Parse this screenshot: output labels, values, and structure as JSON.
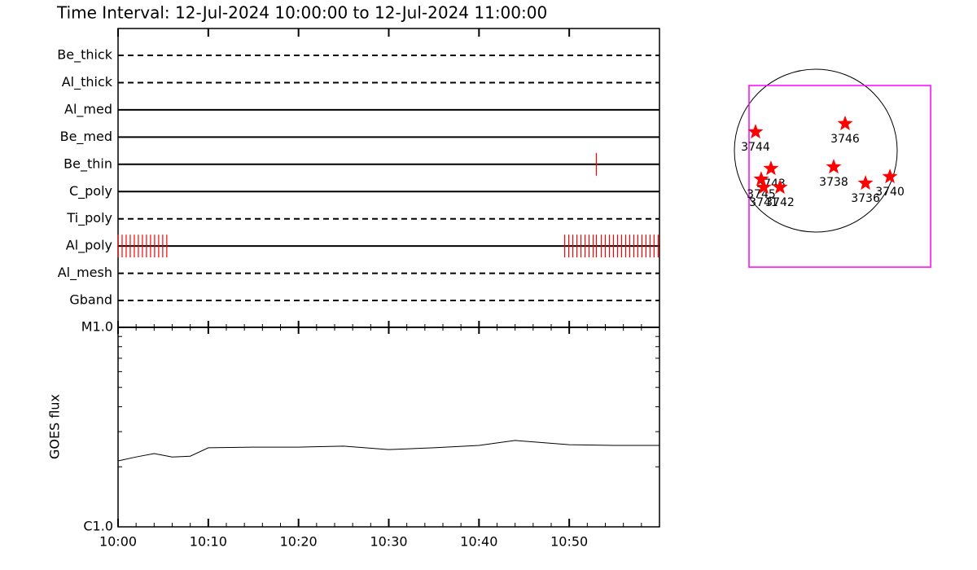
{
  "chart_data": [
    {
      "type": "timeline",
      "title": "Time Interval: 12-Jul-2024 10:00:00 to 12-Jul-2024 11:00:00",
      "categories": [
        "Be_thick",
        "Al_thick",
        "Al_med",
        "Be_med",
        "Be_thin",
        "C_poly",
        "Ti_poly",
        "Al_poly",
        "Al_mesh",
        "Gband"
      ],
      "line_styles": [
        "dashed",
        "dashed",
        "solid",
        "solid",
        "solid",
        "solid",
        "dashed",
        "solid",
        "dashed",
        "dashed"
      ],
      "color": "#ff0000",
      "xlim": [
        0,
        60
      ],
      "observations": [
        {
          "name": "Be_thin",
          "x": [
            53
          ]
        },
        {
          "name": "Al_poly",
          "x": [
            0,
            0.45,
            0.9,
            1.35,
            1.8,
            2.25,
            2.7,
            3.15,
            3.6,
            4.05,
            4.5,
            4.95,
            5.4,
            49.5,
            49.95,
            50.4,
            50.85,
            51.3,
            51.75,
            52.2,
            52.65,
            53,
            53.55,
            54,
            54.45,
            54.9,
            55.35,
            55.8,
            56.25,
            56.7,
            57.15,
            57.6,
            58.05,
            58.5,
            58.95,
            59.4,
            59.85
          ]
        }
      ]
    },
    {
      "type": "line",
      "ylabel": "GOES flux",
      "log_scale": true,
      "color": "#000000",
      "x": [
        0,
        2,
        4,
        6,
        8,
        10,
        15,
        20,
        25,
        30,
        35,
        40,
        44,
        50,
        55,
        60
      ],
      "values": [
        2.14e-06,
        2.24e-06,
        2.33e-06,
        2.24e-06,
        2.26e-06,
        2.49e-06,
        2.51e-06,
        2.51e-06,
        2.54e-06,
        2.44e-06,
        2.49e-06,
        2.56e-06,
        2.71e-06,
        2.58e-06,
        2.56e-06,
        2.56e-06
      ],
      "xlim": [
        0,
        60
      ],
      "xticks": [
        {
          "value": 0,
          "label": "10:00"
        },
        {
          "value": 10,
          "label": "10:10"
        },
        {
          "value": 20,
          "label": "10:20"
        },
        {
          "value": 30,
          "label": "10:30"
        },
        {
          "value": 40,
          "label": "10:40"
        },
        {
          "value": 50,
          "label": "10:50"
        }
      ],
      "ylim": [
        1e-06,
        1e-05
      ],
      "yticks": [
        {
          "value": 1e-06,
          "label": "C1.0"
        },
        {
          "value": 1e-05,
          "label": "M1.0"
        }
      ]
    },
    {
      "type": "scatter",
      "color": "#ff0000",
      "solar_radius": 950,
      "fov_color": "#ff00ff",
      "fov_xlim": [
        -779,
        1340
      ],
      "fov_ylim": [
        -1359,
        760
      ],
      "labels": [
        "3744",
        "3746",
        "3743",
        "3745",
        "3741",
        "3742",
        "3738",
        "3736",
        "3740"
      ],
      "x": [
        -703,
        342,
        -523,
        -637,
        -608,
        -418,
        209,
        580,
        865
      ],
      "values": [
        218,
        314,
        -209,
        -333,
        -428,
        -428,
        -190,
        -380,
        -304
      ]
    }
  ]
}
